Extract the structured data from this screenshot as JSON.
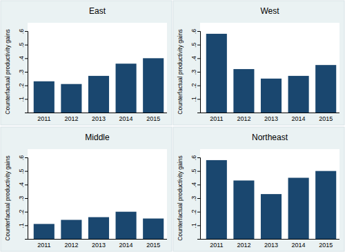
{
  "chart_data": [
    {
      "type": "bar",
      "title": "East",
      "y_label": "Counterfactual productivity gains",
      "categories": [
        "2011",
        "2012",
        "2013",
        "2014",
        "2015"
      ],
      "values": [
        0.23,
        0.21,
        0.27,
        0.36,
        0.4
      ],
      "color": "#1a476f",
      "ylim": [
        0,
        0.6
      ],
      "yticks": [
        {
          "value": 0.1,
          "label": ".1"
        },
        {
          "value": 0.2,
          "label": ".2"
        },
        {
          "value": 0.3,
          "label": ".3"
        },
        {
          "value": 0.4,
          "label": ".4"
        },
        {
          "value": 0.5,
          "label": ".5"
        },
        {
          "value": 0.6,
          "label": ".6"
        }
      ],
      "grid": false
    },
    {
      "type": "bar",
      "title": "West",
      "y_label": "Counterfactual productivity gains",
      "categories": [
        "2011",
        "2012",
        "2013",
        "2014",
        "2015"
      ],
      "values": [
        0.58,
        0.32,
        0.25,
        0.27,
        0.35
      ],
      "color": "#1a476f",
      "ylim": [
        0,
        0.6
      ],
      "yticks": [
        {
          "value": 0.1,
          "label": ".1"
        },
        {
          "value": 0.2,
          "label": ".2"
        },
        {
          "value": 0.3,
          "label": ".3"
        },
        {
          "value": 0.4,
          "label": ".4"
        },
        {
          "value": 0.5,
          "label": ".5"
        },
        {
          "value": 0.6,
          "label": ".6"
        }
      ],
      "grid": false
    },
    {
      "type": "bar",
      "title": "Middle",
      "y_label": "Counterfactual productivity gains",
      "categories": [
        "2011",
        "2012",
        "2013",
        "2014",
        "2015"
      ],
      "values": [
        0.11,
        0.14,
        0.16,
        0.2,
        0.15
      ],
      "color": "#1a476f",
      "ylim": [
        0,
        0.6
      ],
      "yticks": [
        {
          "value": 0.1,
          "label": ".1"
        },
        {
          "value": 0.2,
          "label": ".2"
        },
        {
          "value": 0.3,
          "label": ".3"
        },
        {
          "value": 0.4,
          "label": ".4"
        },
        {
          "value": 0.5,
          "label": ".5"
        },
        {
          "value": 0.6,
          "label": ".6"
        }
      ],
      "grid": false
    },
    {
      "type": "bar",
      "title": "Northeast",
      "y_label": "Counterfactual productivity gains",
      "categories": [
        "2011",
        "2012",
        "2013",
        "2014",
        "2015"
      ],
      "values": [
        0.58,
        0.43,
        0.33,
        0.45,
        0.5
      ],
      "color": "#1a476f",
      "ylim": [
        0,
        0.6
      ],
      "yticks": [
        {
          "value": 0.1,
          "label": ".1"
        },
        {
          "value": 0.2,
          "label": ".2"
        },
        {
          "value": 0.3,
          "label": ".3"
        },
        {
          "value": 0.4,
          "label": ".4"
        },
        {
          "value": 0.5,
          "label": ".5"
        },
        {
          "value": 0.6,
          "label": ".6"
        }
      ],
      "grid": false
    }
  ]
}
